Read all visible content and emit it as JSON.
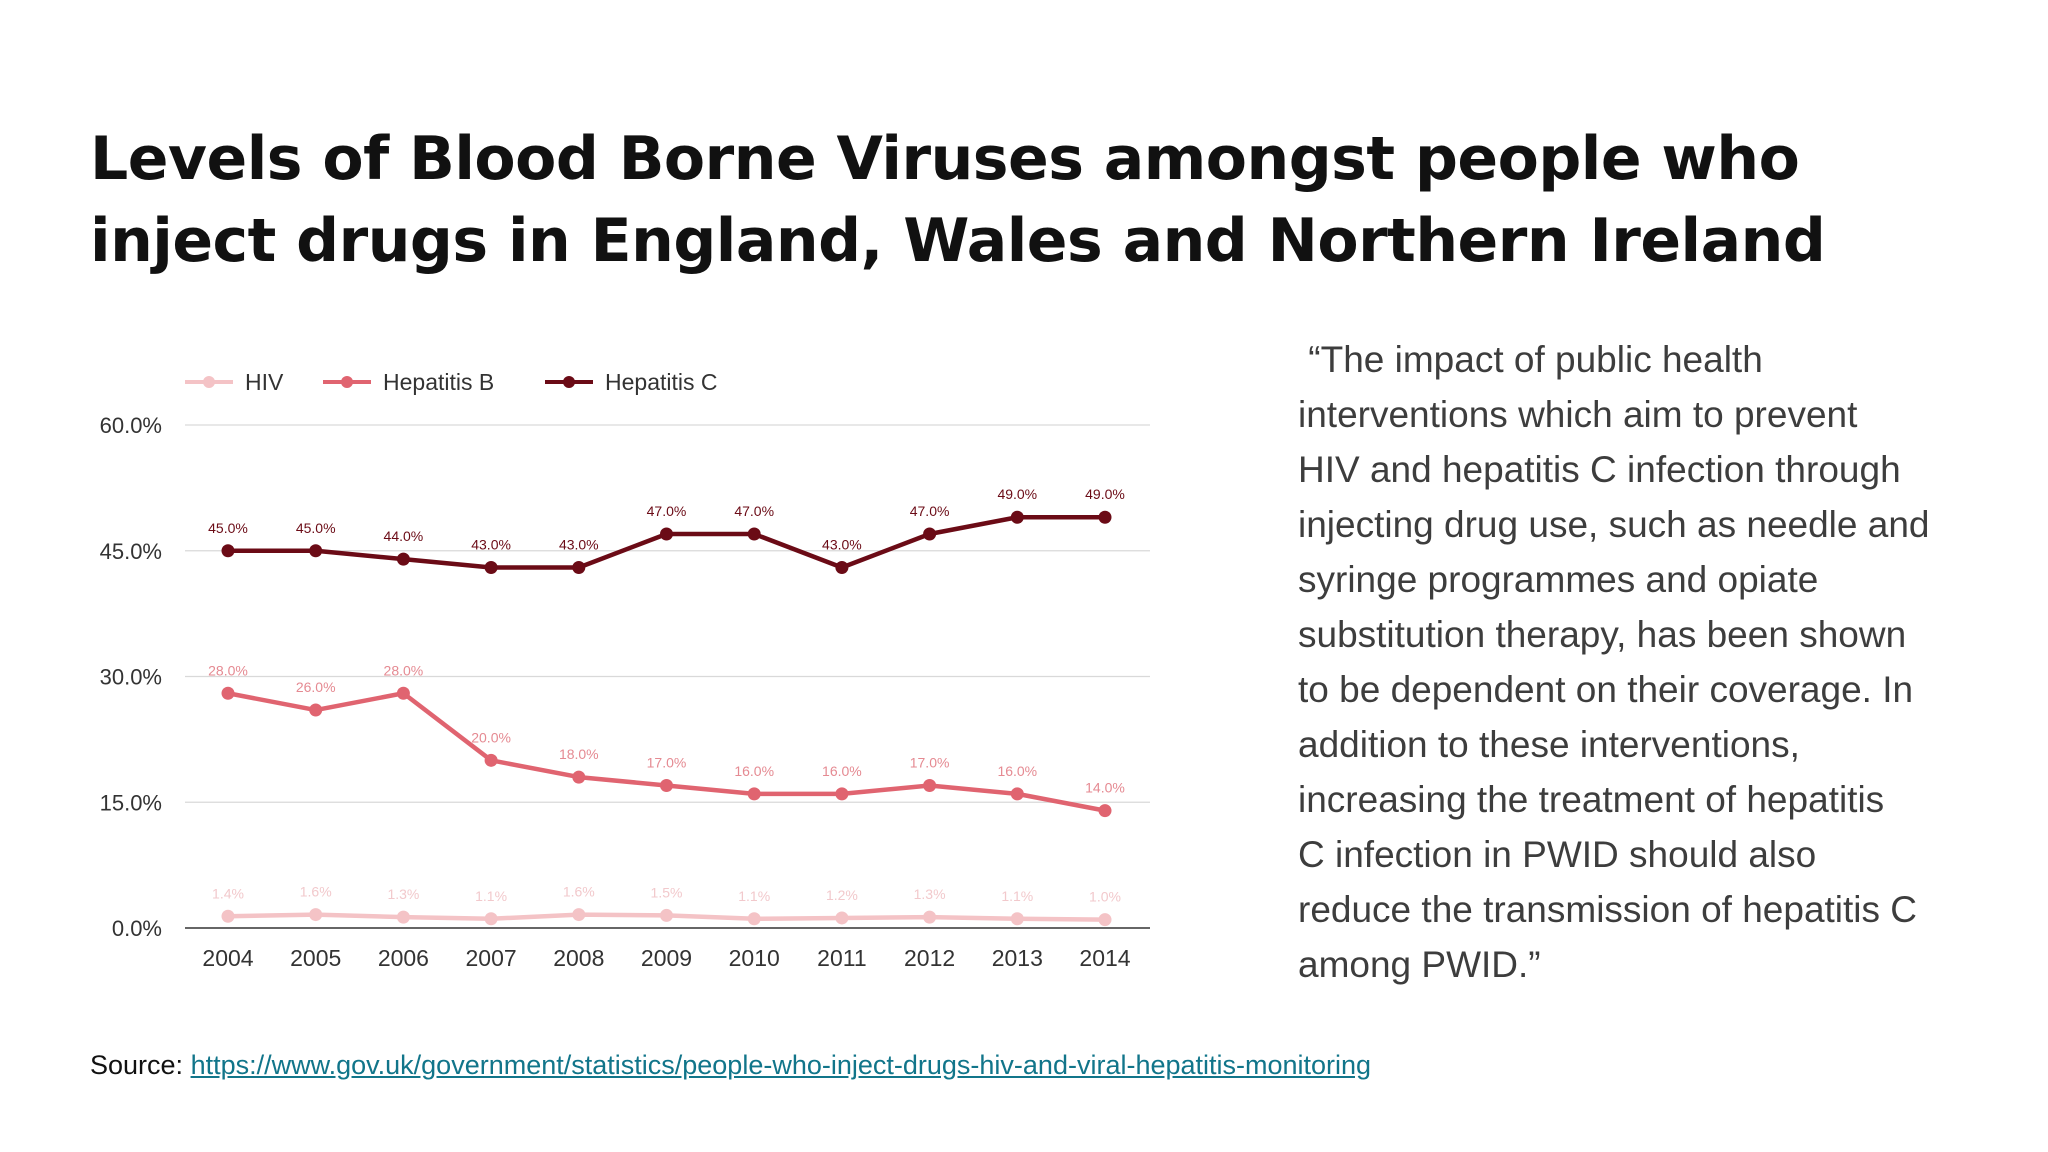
{
  "title_lines": [
    "Levels of Blood Borne Viruses amongst people who",
    "inject drugs in England, Wales and Northern Ireland"
  ],
  "quote": " “The impact of public health\ninterventions which aim to prevent\nHIV and hepatitis C infection through\ninjecting drug use, such as needle and\nsyringe programmes and opiate\nsubstitution therapy, has been shown\nto be dependent on their coverage. In\naddition to these interventions,\nincreasing the treatment of hepatitis\nC infection in PWID should also\nreduce the transmission of hepatitis C\namong PWID.”",
  "source": {
    "label": "Source: ",
    "url_text": "https://www.gov.uk/government/statistics/people-who-inject-drugs-hiv-and-viral-hepatitis-monitoring"
  },
  "chart_data": {
    "type": "line",
    "x": [
      "2004",
      "2005",
      "2006",
      "2007",
      "2008",
      "2009",
      "2010",
      "2011",
      "2012",
      "2013",
      "2014"
    ],
    "series": [
      {
        "name": "HIV",
        "color": "#f4c3c6",
        "values": [
          1.4,
          1.6,
          1.3,
          1.1,
          1.6,
          1.5,
          1.1,
          1.2,
          1.3,
          1.1,
          1.0
        ],
        "labels": [
          "1.4%",
          "1.6%",
          "1.3%",
          "1.1%",
          "1.6%",
          "1.5%",
          "1.1%",
          "1.2%",
          "1.3%",
          "1.1%",
          "1.0%"
        ]
      },
      {
        "name": "Hepatitis B",
        "color": "#e06470",
        "values": [
          28,
          26,
          28,
          20,
          18,
          17,
          16,
          16,
          17,
          16,
          14
        ],
        "labels": [
          "28.0%",
          "26.0%",
          "28.0%",
          "20.0%",
          "18.0%",
          "17.0%",
          "16.0%",
          "16.0%",
          "17.0%",
          "16.0%",
          "14.0%"
        ]
      },
      {
        "name": "Hepatitis C",
        "color": "#6b0b16",
        "values": [
          45,
          45,
          44,
          43,
          43,
          47,
          47,
          43,
          47,
          49,
          49
        ],
        "labels": [
          "45.0%",
          "45.0%",
          "44.0%",
          "43.0%",
          "43.0%",
          "47.0%",
          "47.0%",
          "43.0%",
          "47.0%",
          "49.0%",
          "49.0%"
        ]
      }
    ],
    "yticks": [
      "0.0%",
      "15.0%",
      "30.0%",
      "45.0%",
      "60.0%"
    ],
    "ytick_values": [
      0,
      15,
      30,
      45,
      60
    ],
    "ylim": [
      0,
      60
    ],
    "grid": true,
    "legend": "top-left"
  }
}
